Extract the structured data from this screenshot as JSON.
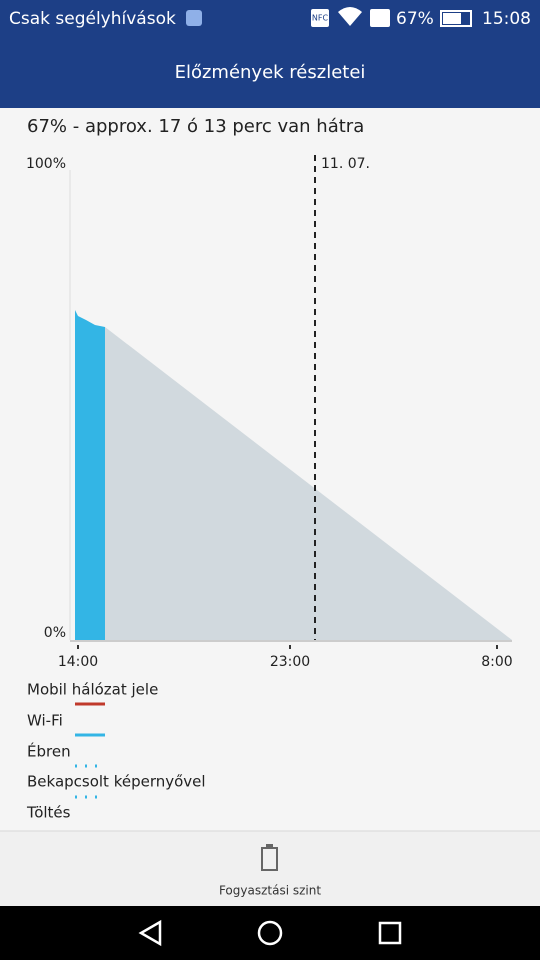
{
  "status_bar": {
    "carrier": "Csak segélyhívások",
    "nfc": "NFC",
    "battery": "67%",
    "time": "15:08"
  },
  "header": {
    "title": "Előzmények részletei"
  },
  "summary": "67% - approx. 17 ó 13 perc van hátra",
  "chart": {
    "y_labels": [
      "100%",
      "0%"
    ],
    "x_labels": [
      "14:00",
      "23:00",
      "8:00"
    ],
    "date_marker": "11. 07."
  },
  "legend": [
    "Mobil hálózat jele",
    "Wi-Fi",
    "Ébren",
    "Bekapcsolt képernyővel",
    "Töltés"
  ],
  "tab": {
    "label": "Fogyasztási szint"
  }
}
